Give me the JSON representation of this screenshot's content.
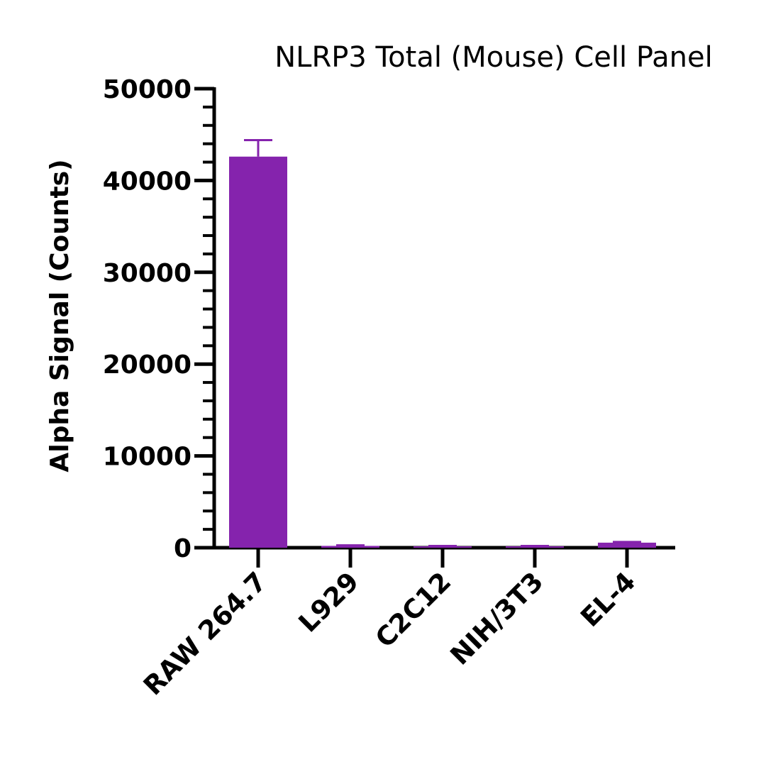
{
  "chart_data": {
    "type": "bar",
    "title": "NLRP3 Total (Mouse) Cell Panel",
    "xlabel": "",
    "ylabel": "Alpha Signal (Counts)",
    "categories": [
      "RAW 264.7",
      "L929",
      "C2C12",
      "NIH/3T3",
      "EL-4"
    ],
    "values": [
      42600,
      200,
      150,
      150,
      550
    ],
    "error": [
      1800,
      60,
      40,
      40,
      80
    ],
    "ylim": [
      0,
      50000
    ],
    "yticks": [
      "0",
      "10000",
      "20000",
      "30000",
      "40000",
      "50000"
    ],
    "grid": false,
    "legend": "none",
    "bar_color": "#8523AD"
  }
}
